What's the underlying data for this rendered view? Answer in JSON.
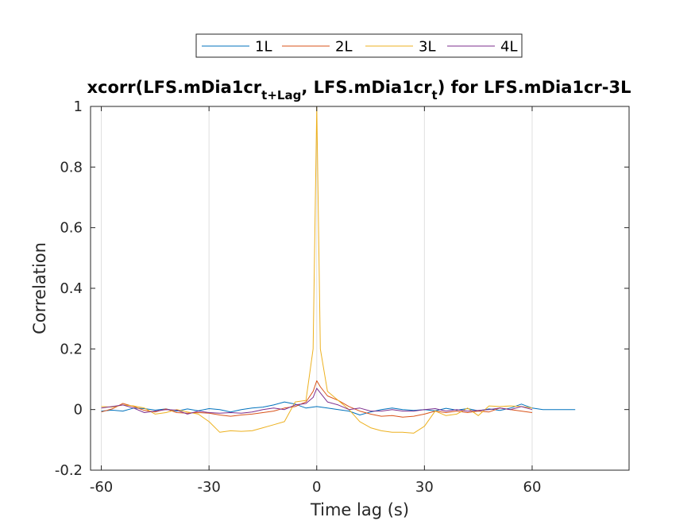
{
  "chart_data": {
    "type": "line",
    "title": {
      "prefix": "xcorr(LFS.mDia1cr",
      "sub1": "t+Lag",
      "middle": ", LFS.mDia1cr",
      "sub2": "t",
      "suffix": ") for LFS.mDia1cr-3L"
    },
    "xlabel": "Time lag (s)",
    "ylabel": "Correlation",
    "xlim": [
      -63,
      87
    ],
    "ylim": [
      -0.2,
      1
    ],
    "xticks": [
      -60,
      -30,
      0,
      30,
      60
    ],
    "xtick_labels": [
      "-60",
      "-30",
      "0",
      "30",
      "60"
    ],
    "yticks": [
      -0.2,
      0,
      0.2,
      0.4,
      0.6,
      0.8,
      1
    ],
    "ytick_labels": [
      "-0.2",
      "0",
      "0.2",
      "0.4",
      "0.6",
      "0.8",
      "1"
    ],
    "grid_x": true,
    "grid_y": false,
    "legend_position": "top-outside",
    "series": [
      {
        "name": "1L",
        "color": "#0072BD",
        "points": [
          [
            -60,
            -0.005
          ],
          [
            -57,
            -0.002
          ],
          [
            -54,
            -0.005
          ],
          [
            -51,
            0.005
          ],
          [
            -48,
            0.003
          ],
          [
            -45,
            -0.002
          ],
          [
            -42,
            0.002
          ],
          [
            -39,
            -0.005
          ],
          [
            -36,
            0.002
          ],
          [
            -33,
            -0.004
          ],
          [
            -30,
            0.003
          ],
          [
            -27,
            0.0
          ],
          [
            -24,
            -0.008
          ],
          [
            -21,
            0.0
          ],
          [
            -18,
            0.005
          ],
          [
            -15,
            0.008
          ],
          [
            -12,
            0.015
          ],
          [
            -9,
            0.025
          ],
          [
            -6,
            0.018
          ],
          [
            -3,
            0.005
          ],
          [
            0,
            0.01
          ],
          [
            3,
            0.005
          ],
          [
            6,
            0.0
          ],
          [
            9,
            -0.005
          ],
          [
            12,
            -0.018
          ],
          [
            15,
            -0.008
          ],
          [
            18,
            0.0
          ],
          [
            21,
            0.005
          ],
          [
            24,
            0.0
          ],
          [
            27,
            -0.003
          ],
          [
            30,
            0.0
          ],
          [
            33,
            -0.004
          ],
          [
            36,
            0.004
          ],
          [
            39,
            -0.002
          ],
          [
            42,
            0.003
          ],
          [
            45,
            -0.004
          ],
          [
            48,
            0.002
          ],
          [
            51,
            -0.003
          ],
          [
            54,
            0.005
          ],
          [
            57,
            0.018
          ],
          [
            60,
            0.005
          ],
          [
            63,
            0.0
          ],
          [
            66,
            0.0
          ],
          [
            69,
            0.0
          ],
          [
            72,
            0.0
          ]
        ]
      },
      {
        "name": "2L",
        "color": "#D95319",
        "points": [
          [
            -60,
            -0.008
          ],
          [
            -57,
            0.002
          ],
          [
            -54,
            0.02
          ],
          [
            -51,
            0.01
          ],
          [
            -48,
            -0.003
          ],
          [
            -45,
            -0.008
          ],
          [
            -42,
            0.002
          ],
          [
            -39,
            -0.01
          ],
          [
            -36,
            -0.012
          ],
          [
            -33,
            -0.01
          ],
          [
            -30,
            -0.012
          ],
          [
            -27,
            -0.018
          ],
          [
            -24,
            -0.022
          ],
          [
            -21,
            -0.018
          ],
          [
            -18,
            -0.015
          ],
          [
            -15,
            -0.01
          ],
          [
            -12,
            -0.005
          ],
          [
            -9,
            0.005
          ],
          [
            -6,
            0.01
          ],
          [
            -3,
            0.025
          ],
          [
            -1,
            0.06
          ],
          [
            0,
            0.095
          ],
          [
            1,
            0.075
          ],
          [
            3,
            0.045
          ],
          [
            6,
            0.03
          ],
          [
            9,
            0.01
          ],
          [
            12,
            -0.005
          ],
          [
            15,
            -0.015
          ],
          [
            18,
            -0.022
          ],
          [
            21,
            -0.02
          ],
          [
            24,
            -0.025
          ],
          [
            27,
            -0.022
          ],
          [
            30,
            -0.015
          ],
          [
            33,
            -0.005
          ],
          [
            36,
            -0.01
          ],
          [
            39,
            -0.005
          ],
          [
            42,
            -0.01
          ],
          [
            45,
            -0.005
          ],
          [
            48,
            -0.008
          ],
          [
            51,
            0.005
          ],
          [
            54,
            0.0
          ],
          [
            57,
            -0.005
          ],
          [
            60,
            -0.01
          ]
        ]
      },
      {
        "name": "3L",
        "color": "#EDB120",
        "points": [
          [
            -60,
            0.01
          ],
          [
            -57,
            0.008
          ],
          [
            -54,
            0.015
          ],
          [
            -51,
            0.012
          ],
          [
            -48,
            0.005
          ],
          [
            -45,
            -0.015
          ],
          [
            -42,
            -0.01
          ],
          [
            -39,
            0.0
          ],
          [
            -36,
            -0.008
          ],
          [
            -33,
            -0.015
          ],
          [
            -30,
            -0.04
          ],
          [
            -27,
            -0.075
          ],
          [
            -24,
            -0.07
          ],
          [
            -21,
            -0.072
          ],
          [
            -18,
            -0.07
          ],
          [
            -15,
            -0.06
          ],
          [
            -12,
            -0.05
          ],
          [
            -9,
            -0.04
          ],
          [
            -6,
            0.025
          ],
          [
            -3,
            0.03
          ],
          [
            -1,
            0.2
          ],
          [
            0,
            1.0
          ],
          [
            1,
            0.2
          ],
          [
            3,
            0.06
          ],
          [
            6,
            0.03
          ],
          [
            9,
            0.0
          ],
          [
            12,
            -0.04
          ],
          [
            15,
            -0.06
          ],
          [
            18,
            -0.07
          ],
          [
            21,
            -0.075
          ],
          [
            24,
            -0.075
          ],
          [
            27,
            -0.078
          ],
          [
            30,
            -0.055
          ],
          [
            33,
            -0.005
          ],
          [
            36,
            -0.02
          ],
          [
            39,
            -0.015
          ],
          [
            42,
            0.005
          ],
          [
            45,
            -0.02
          ],
          [
            48,
            0.012
          ],
          [
            51,
            0.01
          ],
          [
            54,
            0.012
          ],
          [
            57,
            0.01
          ],
          [
            60,
            0.005
          ]
        ]
      },
      {
        "name": "4L",
        "color": "#7E2F8E",
        "points": [
          [
            -60,
            0.005
          ],
          [
            -57,
            0.01
          ],
          [
            -54,
            0.015
          ],
          [
            -51,
            0.005
          ],
          [
            -48,
            -0.01
          ],
          [
            -45,
            -0.005
          ],
          [
            -42,
            0.0
          ],
          [
            -39,
            -0.002
          ],
          [
            -36,
            -0.015
          ],
          [
            -33,
            -0.005
          ],
          [
            -30,
            -0.01
          ],
          [
            -27,
            -0.012
          ],
          [
            -24,
            -0.01
          ],
          [
            -21,
            -0.012
          ],
          [
            -18,
            -0.008
          ],
          [
            -15,
            0.0
          ],
          [
            -12,
            0.005
          ],
          [
            -9,
            0.0
          ],
          [
            -6,
            0.015
          ],
          [
            -3,
            0.02
          ],
          [
            -1,
            0.04
          ],
          [
            0,
            0.07
          ],
          [
            1,
            0.055
          ],
          [
            3,
            0.025
          ],
          [
            6,
            0.015
          ],
          [
            9,
            0.0
          ],
          [
            12,
            0.005
          ],
          [
            15,
            -0.005
          ],
          [
            18,
            -0.005
          ],
          [
            21,
            0.0
          ],
          [
            24,
            -0.005
          ],
          [
            27,
            -0.005
          ],
          [
            30,
            0.0
          ],
          [
            33,
            0.003
          ],
          [
            36,
            -0.005
          ],
          [
            39,
            0.0
          ],
          [
            42,
            -0.005
          ],
          [
            45,
            -0.003
          ],
          [
            48,
            0.0
          ],
          [
            51,
            0.005
          ],
          [
            54,
            0.0
          ],
          [
            57,
            0.01
          ],
          [
            60,
            0.0
          ]
        ]
      }
    ]
  }
}
